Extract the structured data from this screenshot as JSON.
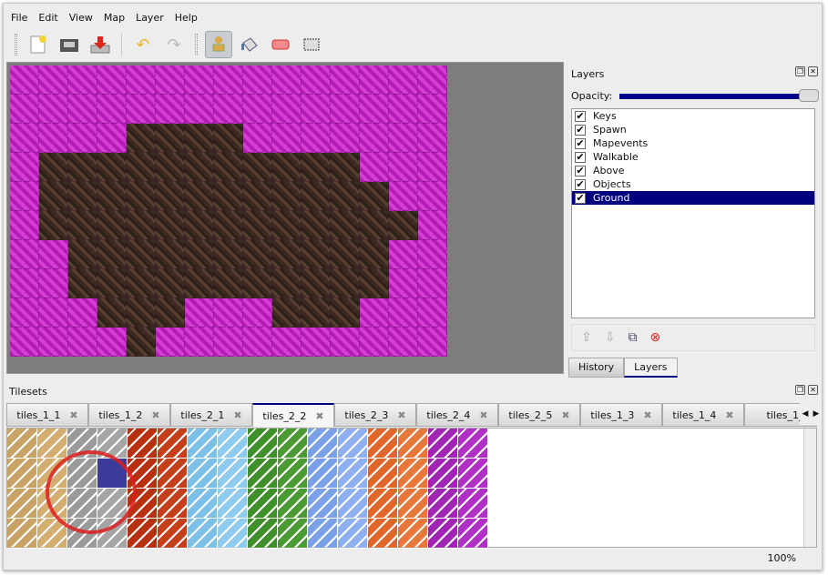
{
  "menu": [
    "File",
    "Edit",
    "View",
    "Map",
    "Layer",
    "Help"
  ],
  "toolbar": {
    "icons": [
      "new-file-icon",
      "open-folder-icon",
      "save-icon",
      "undo-icon",
      "redo-icon",
      "stamp-brush-icon",
      "bucket-fill-icon",
      "eraser-icon",
      "rectangle-select-icon"
    ],
    "active": "stamp-brush-icon"
  },
  "map": {
    "rows": [
      "MMMMMMMMMMMMMMM",
      "MMMMMMMMMMMMMMM",
      "MMMMDDDDMMMMMMM",
      "MDDDDDDDDDDDMMM",
      "MDDDDDDDDDDDDMM",
      "MDDDDDDDDDDDDDM",
      "MMDDDDDDDDDDDMM",
      "MMDDDDDDDDDDDMM",
      "MMMDDDMMMDDDMMM",
      "MMMMDMMMMMMMMMM"
    ],
    "legend": {
      "M": "magenta-tile",
      "D": "dark-dirt-tile"
    }
  },
  "layers_panel": {
    "title": "Layers",
    "opacity_label": "Opacity:",
    "opacity": 1.0,
    "items": [
      {
        "label": "Keys",
        "checked": true
      },
      {
        "label": "Spawn",
        "checked": true
      },
      {
        "label": "Mapevents",
        "checked": true
      },
      {
        "label": "Walkable",
        "checked": true
      },
      {
        "label": "Above",
        "checked": true
      },
      {
        "label": "Objects",
        "checked": true
      },
      {
        "label": "Ground",
        "checked": true,
        "selected": true
      }
    ],
    "tabs": [
      "History",
      "Layers"
    ],
    "active_tab": "Layers"
  },
  "tilesets": {
    "title": "Tilesets",
    "tabs": [
      "tiles_1_1",
      "tiles_1_2",
      "tiles_2_1",
      "tiles_2_2",
      "tiles_2_3",
      "tiles_2_4",
      "tiles_2_5",
      "tiles_1_3",
      "tiles_1_4",
      "tiles_1_"
    ],
    "active_tab": "tiles_2_2",
    "column_colors": [
      "#c9a266",
      "#d4ad70",
      "#9a9a9a",
      "#a5a5a5",
      "#b8300f",
      "#c5401a",
      "#7cc0e8",
      "#8ecbee",
      "#3f8f2a",
      "#4b9a33",
      "#7aa0e8",
      "#8eb0f0",
      "#e0662a",
      "#e8773a",
      "#a025b5",
      "#b030c5"
    ],
    "selected_color": "#3b3c9a"
  },
  "status": {
    "zoom": "100%"
  }
}
